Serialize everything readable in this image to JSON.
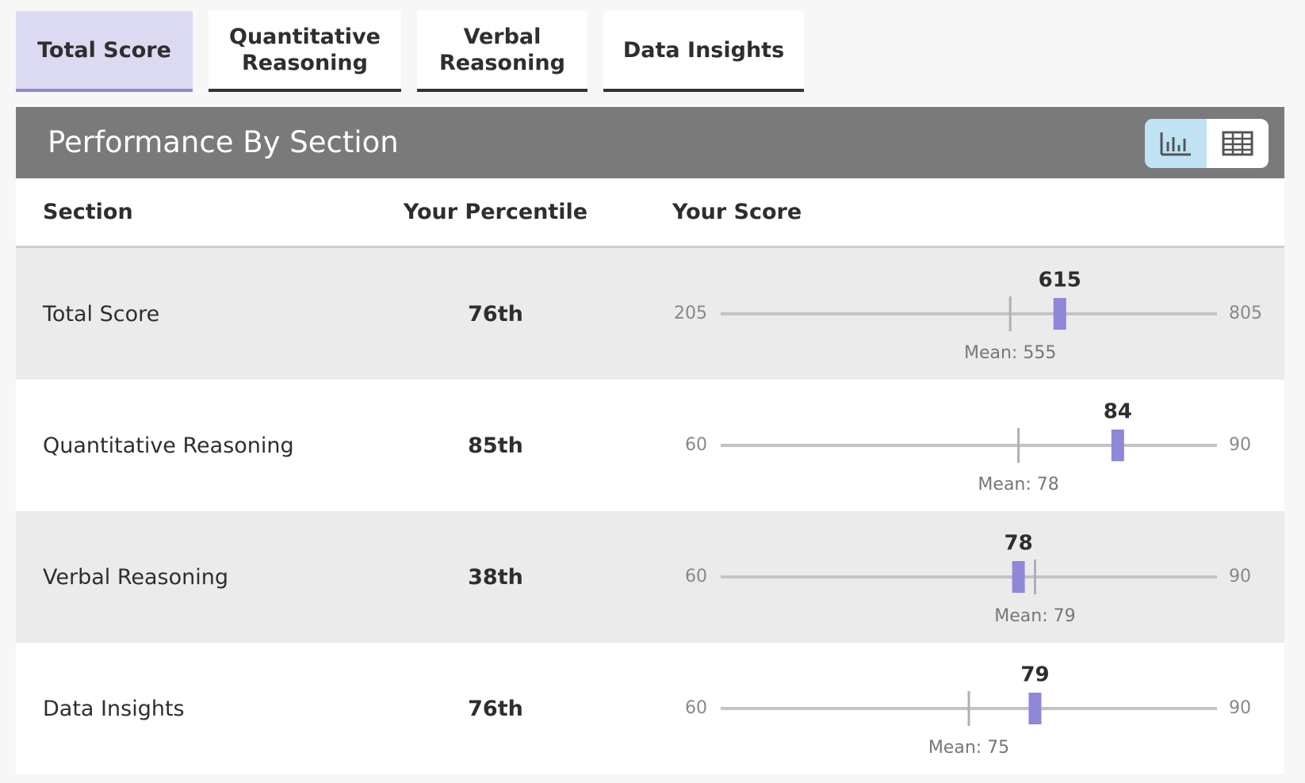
{
  "tabs": [
    {
      "label": "Total Score",
      "active": true
    },
    {
      "label": "Quantitative Reasoning",
      "active": false
    },
    {
      "label": "Verbal Reasoning",
      "active": false
    },
    {
      "label": "Data Insights",
      "active": false
    }
  ],
  "header": {
    "title": "Performance By Section"
  },
  "table": {
    "columns": [
      "Section",
      "Your Percentile",
      "Your Score"
    ],
    "rows": [
      {
        "section": "Total Score",
        "percentile": "76th",
        "min": 205,
        "max": 805,
        "score": 615,
        "mean": {
          "value": 555,
          "label": "Mean: 555"
        }
      },
      {
        "section": "Quantitative Reasoning",
        "percentile": "85th",
        "min": 60,
        "max": 90,
        "score": 84,
        "mean": {
          "value": 78,
          "label": "Mean: 78"
        }
      },
      {
        "section": "Verbal Reasoning",
        "percentile": "38th",
        "min": 60,
        "max": 90,
        "score": 78,
        "mean": {
          "value": 79,
          "label": "Mean: 79"
        }
      },
      {
        "section": "Data Insights",
        "percentile": "76th",
        "min": 60,
        "max": 90,
        "score": 79,
        "mean": {
          "value": 75,
          "label": "Mean: 75"
        }
      }
    ]
  }
}
